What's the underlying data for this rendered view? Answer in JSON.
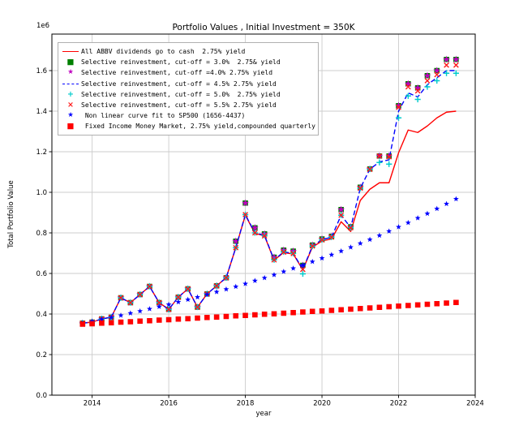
{
  "chart_data": {
    "type": "line",
    "title": "Portfolio Values , Initial Investment = 350K",
    "xlabel": "year",
    "ylabel": "Total Portfolio Value",
    "y_offset_label": "1e6",
    "grid": true,
    "legend_position": "upper left",
    "xlim": [
      2012.95,
      2024.0
    ],
    "ylim": [
      0,
      1.78
    ],
    "xticks": [
      "2014",
      "2016",
      "2018",
      "2020",
      "2022",
      "2024"
    ],
    "yticks": [
      "0.0",
      "0.2",
      "0.4",
      "0.6",
      "0.8",
      "1.0",
      "1.2",
      "1.4",
      "1.6"
    ],
    "x": [
      2013.75,
      2014.0,
      2014.25,
      2014.5,
      2014.75,
      2015.0,
      2015.25,
      2015.5,
      2015.75,
      2016.0,
      2016.25,
      2016.5,
      2016.75,
      2017.0,
      2017.25,
      2017.5,
      2017.75,
      2018.0,
      2018.25,
      2018.5,
      2018.75,
      2019.0,
      2019.25,
      2019.5,
      2019.75,
      2020.0,
      2020.25,
      2020.5,
      2020.75,
      2021.0,
      2021.25,
      2021.5,
      2021.75,
      2022.0,
      2022.25,
      2022.5,
      2022.75,
      2023.0,
      2023.25,
      2023.5
    ],
    "series": [
      {
        "name": "All ABBV dividends go to cash  2.75% yield",
        "color": "#ff0000",
        "style": "solid-line",
        "marker": "none",
        "values": [
          0.355,
          0.36,
          0.376,
          0.384,
          0.48,
          0.456,
          0.496,
          0.536,
          0.456,
          0.423,
          0.483,
          0.524,
          0.434,
          0.499,
          0.539,
          0.579,
          0.727,
          0.887,
          0.798,
          0.785,
          0.665,
          0.703,
          0.696,
          0.618,
          0.73,
          0.76,
          0.77,
          0.855,
          0.807,
          0.96,
          1.015,
          1.047,
          1.047,
          1.195,
          1.307,
          1.295,
          1.327,
          1.367,
          1.395,
          1.4
        ]
      },
      {
        "name": "Selective reinvestment, cut-off = 3.0%  2.75& yield",
        "color": "#008000",
        "style": "markers",
        "marker": "square",
        "values": [
          0.355,
          0.36,
          0.376,
          0.384,
          0.48,
          0.456,
          0.496,
          0.536,
          0.456,
          0.423,
          0.483,
          0.524,
          0.434,
          0.499,
          0.539,
          0.579,
          0.759,
          0.947,
          0.825,
          0.795,
          0.68,
          0.715,
          0.71,
          0.64,
          0.74,
          0.77,
          0.783,
          0.915,
          0.83,
          1.025,
          1.115,
          1.179,
          1.179,
          1.427,
          1.535,
          1.515,
          1.575,
          1.6,
          1.655,
          1.655
        ]
      },
      {
        "name": "Selective reinvestment, cut-off =4.0% 2.75% yield",
        "color": "#bf00bf",
        "style": "markers",
        "marker": "star",
        "values": [
          0.355,
          0.36,
          0.376,
          0.384,
          0.48,
          0.456,
          0.496,
          0.536,
          0.456,
          0.423,
          0.483,
          0.524,
          0.434,
          0.499,
          0.539,
          0.579,
          0.759,
          0.947,
          0.825,
          0.795,
          0.68,
          0.715,
          0.71,
          0.64,
          0.74,
          0.77,
          0.783,
          0.915,
          0.83,
          1.025,
          1.115,
          1.179,
          1.179,
          1.427,
          1.535,
          1.515,
          1.575,
          1.6,
          1.655,
          1.655
        ]
      },
      {
        "name": "Selective reinvestment, cut-off = 4.5% 2.75% yield",
        "color": "#0000ff",
        "style": "dashed-line",
        "marker": "none",
        "values": [
          0.355,
          0.36,
          0.376,
          0.384,
          0.48,
          0.456,
          0.496,
          0.536,
          0.456,
          0.423,
          0.483,
          0.524,
          0.434,
          0.499,
          0.539,
          0.579,
          0.727,
          0.89,
          0.8,
          0.788,
          0.667,
          0.706,
          0.699,
          0.62,
          0.735,
          0.766,
          0.779,
          0.887,
          0.826,
          1.02,
          1.114,
          1.15,
          1.16,
          1.4,
          1.49,
          1.47,
          1.53,
          1.565,
          1.6,
          1.6
        ]
      },
      {
        "name": "Selective reinvestment, cut-off = 5.0%  2.75% yield",
        "color": "#00cccc",
        "style": "markers",
        "marker": "plus",
        "values": [
          0.355,
          0.36,
          0.376,
          0.384,
          0.48,
          0.456,
          0.496,
          0.536,
          0.456,
          0.423,
          0.483,
          0.524,
          0.434,
          0.499,
          0.539,
          0.579,
          0.727,
          0.89,
          0.8,
          0.788,
          0.667,
          0.706,
          0.699,
          0.598,
          0.735,
          0.766,
          0.779,
          0.887,
          0.826,
          1.02,
          1.114,
          1.147,
          1.139,
          1.367,
          1.475,
          1.458,
          1.52,
          1.55,
          1.587,
          1.587
        ]
      },
      {
        "name": "Selective reinvestment, cut-off = 5.5% 2.75% yield",
        "color": "#ff1a1a",
        "style": "markers",
        "marker": "x",
        "values": [
          0.355,
          0.36,
          0.376,
          0.384,
          0.48,
          0.456,
          0.496,
          0.536,
          0.456,
          0.423,
          0.483,
          0.524,
          0.434,
          0.499,
          0.539,
          0.579,
          0.727,
          0.89,
          0.8,
          0.785,
          0.667,
          0.705,
          0.698,
          0.62,
          0.735,
          0.765,
          0.779,
          0.887,
          0.825,
          1.02,
          1.113,
          1.179,
          1.175,
          1.419,
          1.52,
          1.5,
          1.55,
          1.58,
          1.627,
          1.627
        ]
      },
      {
        "name": " Non linear curve fit to SP500 (1656-4437)",
        "color": "#0000ff",
        "style": "markers",
        "marker": "smallstar",
        "values": [
          0.355,
          0.364,
          0.374,
          0.383,
          0.393,
          0.404,
          0.414,
          0.425,
          0.436,
          0.447,
          0.459,
          0.471,
          0.483,
          0.496,
          0.509,
          0.522,
          0.535,
          0.549,
          0.564,
          0.578,
          0.593,
          0.609,
          0.625,
          0.641,
          0.658,
          0.675,
          0.692,
          0.71,
          0.729,
          0.748,
          0.767,
          0.787,
          0.808,
          0.829,
          0.85,
          0.873,
          0.895,
          0.919,
          0.943,
          0.967
        ]
      },
      {
        "name": " Fixed Income Money Market, 2.75% yield,compounded quarterly",
        "color": "#ff0000",
        "style": "markers",
        "marker": "square",
        "values": [
          0.35,
          0.352,
          0.355,
          0.357,
          0.36,
          0.362,
          0.365,
          0.367,
          0.37,
          0.372,
          0.375,
          0.377,
          0.38,
          0.383,
          0.385,
          0.388,
          0.391,
          0.393,
          0.396,
          0.399,
          0.401,
          0.404,
          0.407,
          0.41,
          0.413,
          0.415,
          0.418,
          0.421,
          0.424,
          0.427,
          0.43,
          0.433,
          0.436,
          0.439,
          0.442,
          0.445,
          0.448,
          0.451,
          0.454,
          0.457
        ]
      }
    ],
    "colors": {
      "grid": "#cccccc",
      "frame": "#000000",
      "legend_border": "#b0b0b0",
      "background": "#ffffff"
    }
  }
}
